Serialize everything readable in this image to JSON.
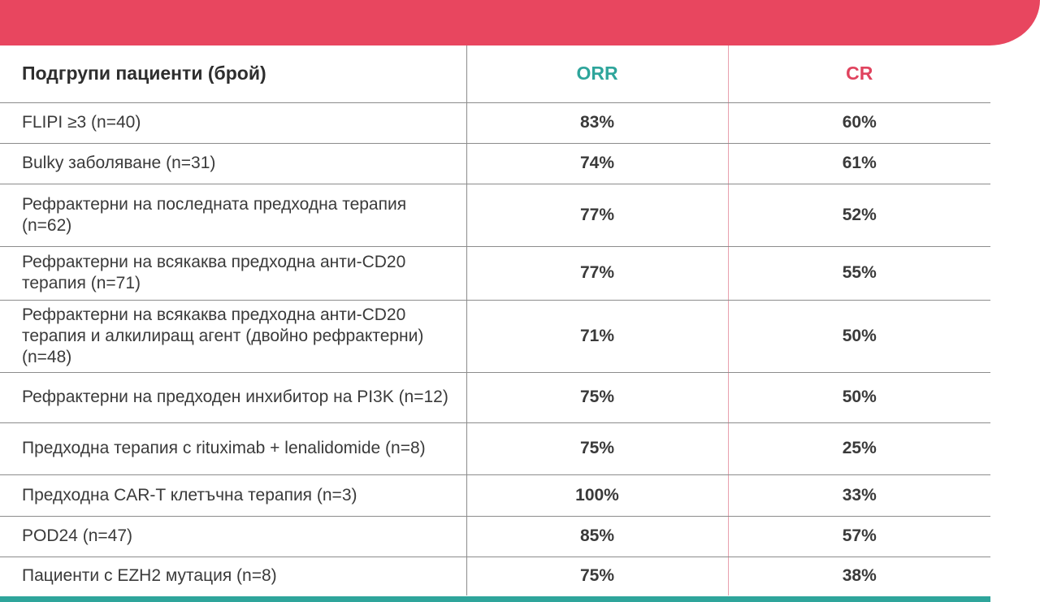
{
  "colors": {
    "banner": "#e8465f",
    "orr_header": "#2ea59b",
    "cr_header": "#e0435e",
    "bottom_bar": "#2ea59b"
  },
  "table": {
    "headers": {
      "subgroup": "Подгрупи пациенти (брой)",
      "orr": "ORR",
      "cr": "CR"
    },
    "rows": [
      {
        "label": "FLIPI ≥3 (n=40)",
        "orr": "83%",
        "cr": "60%"
      },
      {
        "label": "Bulky заболяване (n=31)",
        "orr": "74%",
        "cr": "61%"
      },
      {
        "label": "Рефрактерни на последната предходна терапия (n=62)",
        "orr": "77%",
        "cr": "52%"
      },
      {
        "label": "Рефрактерни на всякаква предходна анти-CD20 терапия (n=71)",
        "orr": "77%",
        "cr": "55%"
      },
      {
        "label": "Рефрактерни на всякаква предходна анти-CD20 терапия и алкилиращ агент (двойно рефрактерни) (n=48)",
        "orr": "71%",
        "cr": "50%"
      },
      {
        "label": "Рефрактерни на предходен инхибитор на PI3K (n=12)",
        "orr": "75%",
        "cr": "50%"
      },
      {
        "label": "Предходна терапия с rituximab + lenalidomide (n=8)",
        "orr": "75%",
        "cr": "25%"
      },
      {
        "label": "Предходна CAR-T клетъчна терапия (n=3)",
        "orr": "100%",
        "cr": "33%"
      },
      {
        "label": "POD24 (n=47)",
        "orr": "85%",
        "cr": "57%"
      },
      {
        "label": "Пациенти с EZH2 мутация (n=8)",
        "orr": "75%",
        "cr": "38%"
      }
    ]
  }
}
